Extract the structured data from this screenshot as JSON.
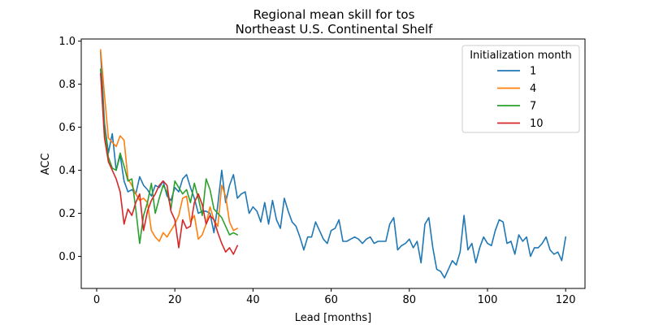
{
  "chart_data": {
    "type": "line",
    "title": "Regional mean skill for tos",
    "subtitle": "Northeast U.S. Continental Shelf",
    "xlabel": "Lead [months]",
    "ylabel": "ACC",
    "xlim": [
      -3.95,
      124.95
    ],
    "ylim": [
      -0.149,
      1.01
    ],
    "xticks": [
      0,
      20,
      40,
      60,
      80,
      100,
      120
    ],
    "yticks": [
      0.0,
      0.2,
      0.4,
      0.6,
      0.8,
      1.0
    ],
    "xtick_labels": [
      "0",
      "20",
      "40",
      "60",
      "80",
      "100",
      "120"
    ],
    "ytick_labels": [
      "0.0",
      "0.2",
      "0.4",
      "0.6",
      "0.8",
      "1.0"
    ],
    "grid": false,
    "legend": {
      "title": "Initialization month",
      "location": "top-right"
    },
    "series": [
      {
        "name": "1",
        "color": "#1f77b4",
        "x": [
          1,
          2,
          3,
          4,
          5,
          6,
          7,
          8,
          9,
          10,
          11,
          12,
          13,
          14,
          15,
          16,
          17,
          18,
          19,
          20,
          21,
          22,
          23,
          24,
          25,
          26,
          27,
          28,
          29,
          30,
          31,
          32,
          33,
          34,
          35,
          36,
          37,
          38,
          39,
          40,
          41,
          42,
          43,
          44,
          45,
          46,
          47,
          48,
          49,
          50,
          51,
          52,
          53,
          54,
          55,
          56,
          57,
          58,
          59,
          60,
          61,
          62,
          63,
          64,
          65,
          66,
          67,
          68,
          69,
          70,
          71,
          72,
          73,
          74,
          75,
          76,
          77,
          78,
          79,
          80,
          81,
          82,
          83,
          84,
          85,
          86,
          87,
          88,
          89,
          90,
          91,
          92,
          93,
          94,
          95,
          96,
          97,
          98,
          99,
          100,
          101,
          102,
          103,
          104,
          105,
          106,
          107,
          108,
          109,
          110,
          111,
          112,
          113,
          114,
          115,
          116,
          117,
          118,
          119,
          120
        ],
        "values": [
          0.95,
          0.62,
          0.48,
          0.57,
          0.4,
          0.47,
          0.35,
          0.3,
          0.31,
          0.29,
          0.37,
          0.33,
          0.31,
          0.28,
          0.33,
          0.32,
          0.35,
          0.28,
          0.26,
          0.32,
          0.3,
          0.36,
          0.38,
          0.32,
          0.27,
          0.2,
          0.21,
          0.21,
          0.2,
          0.11,
          0.24,
          0.4,
          0.25,
          0.33,
          0.38,
          0.27,
          0.29,
          0.3,
          0.2,
          0.23,
          0.21,
          0.16,
          0.25,
          0.15,
          0.26,
          0.17,
          0.13,
          0.27,
          0.21,
          0.16,
          0.14,
          0.09,
          0.03,
          0.09,
          0.09,
          0.16,
          0.12,
          0.08,
          0.06,
          0.12,
          0.13,
          0.17,
          0.07,
          0.07,
          0.08,
          0.09,
          0.08,
          0.06,
          0.08,
          0.09,
          0.06,
          0.07,
          0.07,
          0.07,
          0.15,
          0.18,
          0.03,
          0.05,
          0.06,
          0.08,
          0.04,
          0.07,
          -0.03,
          0.15,
          0.18,
          0.04,
          -0.06,
          -0.07,
          -0.1,
          -0.06,
          -0.02,
          -0.04,
          0.02,
          0.19,
          0.03,
          0.06,
          -0.03,
          0.04,
          0.09,
          0.06,
          0.05,
          0.12,
          0.17,
          0.16,
          0.06,
          0.07,
          0.01,
          0.1,
          0.07,
          0.09,
          0.0,
          0.04,
          0.04,
          0.06,
          0.09,
          0.03,
          0.01,
          0.02,
          -0.02,
          0.09
        ]
      },
      {
        "name": "4",
        "color": "#ff7f0e",
        "x": [
          1,
          2,
          3,
          4,
          5,
          6,
          7,
          8,
          9,
          10,
          11,
          12,
          13,
          14,
          15,
          16,
          17,
          18,
          19,
          20,
          21,
          22,
          23,
          24,
          25,
          26,
          27,
          28,
          29,
          30,
          31,
          32,
          33,
          34,
          35,
          36
        ],
        "values": [
          0.96,
          0.75,
          0.55,
          0.53,
          0.51,
          0.56,
          0.54,
          0.36,
          0.33,
          0.29,
          0.26,
          0.27,
          0.25,
          0.12,
          0.09,
          0.07,
          0.11,
          0.09,
          0.12,
          0.15,
          0.19,
          0.27,
          0.28,
          0.16,
          0.19,
          0.08,
          0.1,
          0.15,
          0.23,
          0.17,
          0.14,
          0.33,
          0.28,
          0.16,
          0.12,
          0.13
        ]
      },
      {
        "name": "7",
        "color": "#2ca02c",
        "x": [
          1,
          2,
          3,
          4,
          5,
          6,
          7,
          8,
          9,
          10,
          11,
          12,
          13,
          14,
          15,
          16,
          17,
          18,
          19,
          20,
          21,
          22,
          23,
          24,
          25,
          26,
          27,
          28,
          29,
          30,
          31,
          32,
          33,
          34,
          35,
          36
        ],
        "values": [
          0.87,
          0.6,
          0.46,
          0.41,
          0.4,
          0.48,
          0.42,
          0.35,
          0.36,
          0.22,
          0.06,
          0.19,
          0.25,
          0.34,
          0.2,
          0.27,
          0.33,
          0.3,
          0.22,
          0.35,
          0.32,
          0.29,
          0.31,
          0.25,
          0.34,
          0.27,
          0.19,
          0.36,
          0.31,
          0.22,
          0.2,
          0.18,
          0.14,
          0.1,
          0.11,
          0.1
        ]
      },
      {
        "name": "10",
        "color": "#d62728",
        "x": [
          1,
          2,
          3,
          4,
          5,
          6,
          7,
          8,
          9,
          10,
          11,
          12,
          13,
          14,
          15,
          16,
          17,
          18,
          19,
          20,
          21,
          22,
          23,
          24,
          25,
          26,
          27,
          28,
          29,
          30,
          31,
          32,
          33,
          34,
          35,
          36
        ],
        "values": [
          0.85,
          0.55,
          0.44,
          0.4,
          0.36,
          0.3,
          0.15,
          0.22,
          0.19,
          0.25,
          0.29,
          0.12,
          0.21,
          0.26,
          0.29,
          0.33,
          0.35,
          0.33,
          0.21,
          0.17,
          0.04,
          0.17,
          0.13,
          0.14,
          0.25,
          0.29,
          0.24,
          0.15,
          0.19,
          0.17,
          0.11,
          0.06,
          0.02,
          0.04,
          0.01,
          0.05
        ]
      }
    ]
  }
}
